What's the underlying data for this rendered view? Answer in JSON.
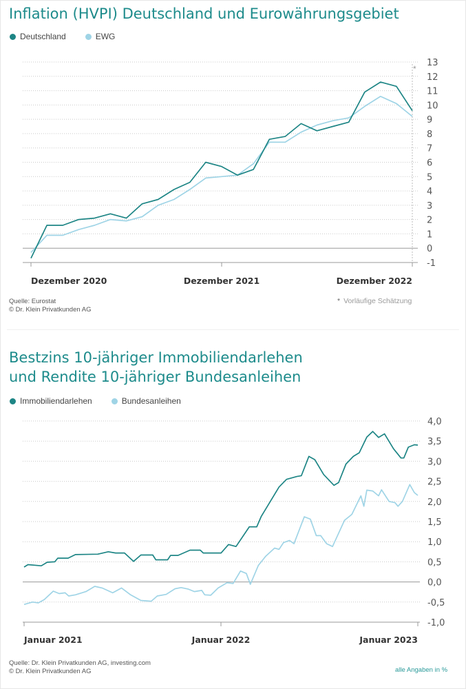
{
  "colors": {
    "primary": "#1d8585",
    "secondary": "#9fd4e6",
    "title": "#1d8b8b",
    "grid": "#c8c8c8",
    "axis": "#999999"
  },
  "chart_data": [
    {
      "type": "line",
      "title": "Inflation (HVPI) Deutschland und Eurowährungsgebiet",
      "x_unit": "months since Dezember 2020",
      "xlim": [
        0,
        24
      ],
      "xticks": [
        {
          "x": 0,
          "label": "Dezember 2020"
        },
        {
          "x": 12,
          "label": "Dezember 2021"
        },
        {
          "x": 24,
          "label": "Dezember 2022"
        }
      ],
      "ylim": [
        -1,
        13
      ],
      "yticks": [
        -1,
        0,
        1,
        2,
        3,
        4,
        5,
        6,
        7,
        8,
        9,
        10,
        11,
        12,
        13
      ],
      "ytick_labels": [
        "-1",
        "0",
        "1",
        "2",
        "3",
        "4",
        "5",
        "6",
        "7",
        "8",
        "9",
        "10",
        "11",
        "12",
        "13"
      ],
      "grid": true,
      "legend_position": "top-left",
      "series": [
        {
          "name": "Deutschland",
          "color": "#1d8585",
          "values": [
            -0.7,
            1.6,
            1.6,
            2.0,
            2.1,
            2.4,
            2.1,
            3.1,
            3.4,
            4.1,
            4.6,
            6.0,
            5.7,
            5.1,
            5.5,
            7.6,
            7.8,
            8.7,
            8.2,
            8.5,
            8.8,
            10.9,
            11.6,
            11.3,
            9.6
          ]
        },
        {
          "name": "EWG",
          "color": "#9fd4e6",
          "values": [
            -0.3,
            0.9,
            0.9,
            1.3,
            1.6,
            2.0,
            1.9,
            2.2,
            3.0,
            3.4,
            4.1,
            4.9,
            5.0,
            5.1,
            5.9,
            7.4,
            7.4,
            8.1,
            8.6,
            8.9,
            9.1,
            9.9,
            10.6,
            10.1,
            9.2
          ]
        }
      ],
      "estimate_marker": "*",
      "estimate_note": "Vorläufige Schätzung",
      "source": "Quelle: Eurostat",
      "copyright": "© Dr. Klein Privatkunden AG"
    },
    {
      "type": "line",
      "title_line1": "Bestzins 10-jähriger Immobiliendarlehen",
      "title_line2": "und Rendite 10-jähriger Bundesanleihen",
      "x_unit": "months since Januar 2021",
      "xlim": [
        0,
        24
      ],
      "xticks": [
        {
          "x": 0,
          "label": "Januar 2021"
        },
        {
          "x": 12,
          "label": "Januar 2022"
        },
        {
          "x": 24,
          "label": "Januar 2023"
        }
      ],
      "ylim": [
        -1.0,
        4.0
      ],
      "yticks": [
        -1,
        -0.5,
        0,
        0.5,
        1,
        1.5,
        2,
        2.5,
        3,
        3.5,
        4
      ],
      "ytick_labels": [
        "-1,0",
        "-0,5",
        "0,0",
        "0,5",
        "1,0",
        "1,5",
        "2,0",
        "2,5",
        "3,0",
        "3,5",
        "4,0"
      ],
      "grid": true,
      "legend_position": "top-left",
      "series": [
        {
          "name": "Immobiliendarlehen",
          "color": "#1d8585",
          "points": [
            [
              0,
              0.37
            ],
            [
              0.24,
              0.43
            ],
            [
              1.05,
              0.4
            ],
            [
              1.41,
              0.49
            ],
            [
              1.87,
              0.5
            ],
            [
              2.05,
              0.59
            ],
            [
              2.68,
              0.59
            ],
            [
              3.13,
              0.68
            ],
            [
              4.49,
              0.69
            ],
            [
              5.13,
              0.75
            ],
            [
              5.58,
              0.72
            ],
            [
              6.12,
              0.72
            ],
            [
              6.67,
              0.51
            ],
            [
              7.12,
              0.67
            ],
            [
              7.84,
              0.67
            ],
            [
              8.03,
              0.55
            ],
            [
              8.75,
              0.55
            ],
            [
              8.93,
              0.66
            ],
            [
              9.38,
              0.66
            ],
            [
              10.11,
              0.79
            ],
            [
              10.74,
              0.79
            ],
            [
              10.92,
              0.72
            ],
            [
              12.01,
              0.72
            ],
            [
              12.46,
              0.93
            ],
            [
              12.92,
              0.88
            ],
            [
              13.73,
              1.37
            ],
            [
              14.18,
              1.37
            ],
            [
              14.46,
              1.63
            ],
            [
              15.54,
              2.36
            ],
            [
              16.0,
              2.55
            ],
            [
              16.63,
              2.62
            ],
            [
              16.9,
              2.64
            ],
            [
              17.36,
              3.12
            ],
            [
              17.72,
              3.04
            ],
            [
              18.26,
              2.67
            ],
            [
              18.89,
              2.4
            ],
            [
              19.17,
              2.47
            ],
            [
              19.62,
              2.93
            ],
            [
              20.07,
              3.12
            ],
            [
              20.43,
              3.21
            ],
            [
              20.89,
              3.6
            ],
            [
              21.25,
              3.74
            ],
            [
              21.61,
              3.59
            ],
            [
              21.97,
              3.68
            ],
            [
              22.52,
              3.31
            ],
            [
              22.97,
              3.08
            ],
            [
              23.15,
              3.08
            ],
            [
              23.42,
              3.35
            ],
            [
              23.79,
              3.41
            ],
            [
              24,
              3.4
            ]
          ]
        },
        {
          "name": "Bundesanleihen",
          "color": "#9fd4e6",
          "points": [
            [
              0,
              -0.56
            ],
            [
              0.51,
              -0.5
            ],
            [
              0.87,
              -0.52
            ],
            [
              1.23,
              -0.44
            ],
            [
              1.78,
              -0.23
            ],
            [
              2.14,
              -0.29
            ],
            [
              2.5,
              -0.27
            ],
            [
              2.72,
              -0.35
            ],
            [
              3.13,
              -0.32
            ],
            [
              3.77,
              -0.24
            ],
            [
              4.31,
              -0.11
            ],
            [
              4.76,
              -0.15
            ],
            [
              5.4,
              -0.27
            ],
            [
              5.94,
              -0.15
            ],
            [
              6.49,
              -0.32
            ],
            [
              7.12,
              -0.46
            ],
            [
              7.75,
              -0.48
            ],
            [
              8.12,
              -0.35
            ],
            [
              8.66,
              -0.31
            ],
            [
              9.2,
              -0.17
            ],
            [
              9.57,
              -0.14
            ],
            [
              10.02,
              -0.18
            ],
            [
              10.38,
              -0.24
            ],
            [
              10.83,
              -0.21
            ],
            [
              11.01,
              -0.32
            ],
            [
              11.38,
              -0.33
            ],
            [
              11.83,
              -0.15
            ],
            [
              12.37,
              -0.02
            ],
            [
              12.74,
              -0.04
            ],
            [
              13.19,
              0.27
            ],
            [
              13.55,
              0.21
            ],
            [
              13.79,
              -0.06
            ],
            [
              14.28,
              0.41
            ],
            [
              14.73,
              0.64
            ],
            [
              15.27,
              0.84
            ],
            [
              15.54,
              0.81
            ],
            [
              15.82,
              0.98
            ],
            [
              16.18,
              1.03
            ],
            [
              16.45,
              0.95
            ],
            [
              17.08,
              1.62
            ],
            [
              17.45,
              1.56
            ],
            [
              17.81,
              1.15
            ],
            [
              18.08,
              1.15
            ],
            [
              18.44,
              0.95
            ],
            [
              18.8,
              0.88
            ],
            [
              19.53,
              1.53
            ],
            [
              19.98,
              1.68
            ],
            [
              20.53,
              2.14
            ],
            [
              20.71,
              1.88
            ],
            [
              20.89,
              2.28
            ],
            [
              21.25,
              2.26
            ],
            [
              21.61,
              2.14
            ],
            [
              21.79,
              2.29
            ],
            [
              22.25,
              2.0
            ],
            [
              22.61,
              1.97
            ],
            [
              22.79,
              1.88
            ],
            [
              23.06,
              2.0
            ],
            [
              23.51,
              2.42
            ],
            [
              23.79,
              2.22
            ],
            [
              24,
              2.15
            ]
          ]
        }
      ],
      "source": "Quelle: Dr. Klein Privatkunden AG, investing.com",
      "copyright": "© Dr. Klein Privatkunden AG",
      "unit_note": "alle Angaben in %"
    }
  ]
}
